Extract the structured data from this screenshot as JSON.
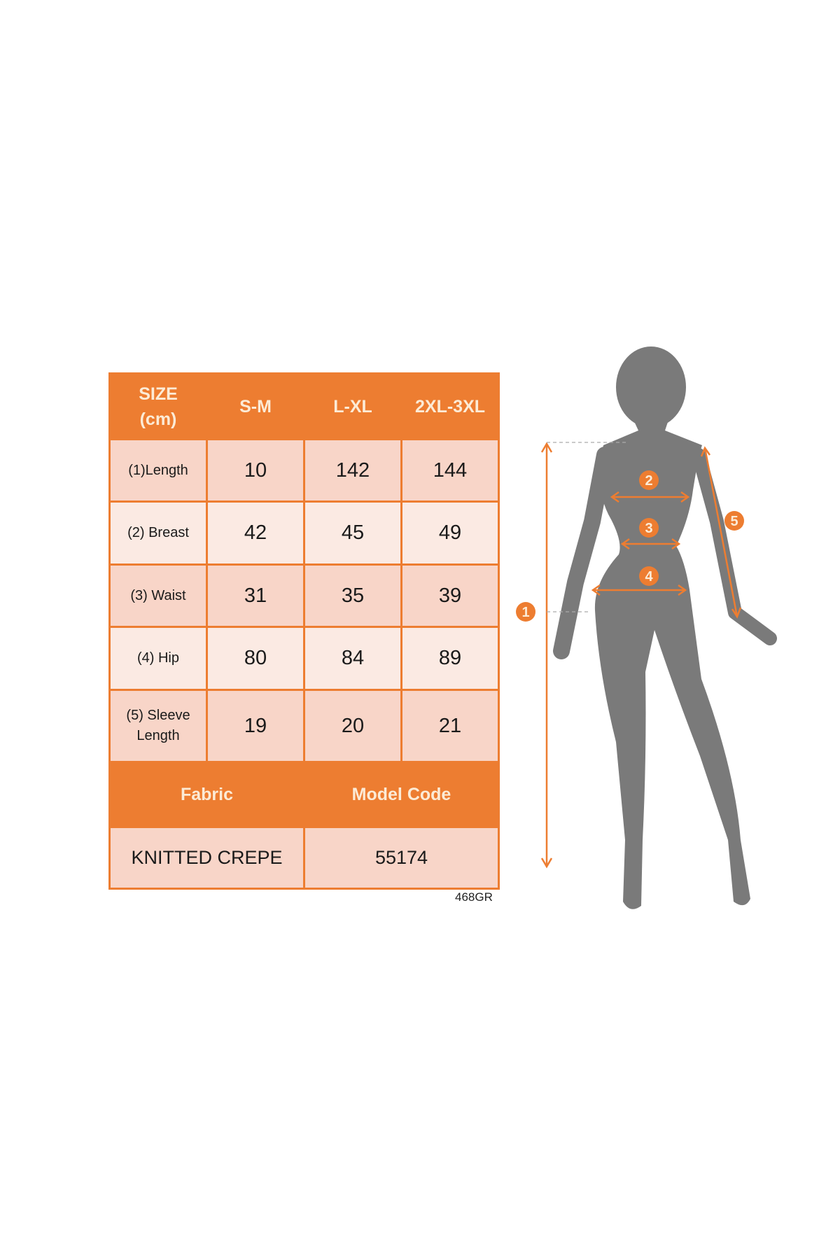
{
  "size_table": {
    "header": [
      "SIZE (cm)",
      "S-M",
      "L-XL",
      "2XL-3XL"
    ],
    "rows": [
      {
        "label": "(1)Length",
        "values": [
          "10",
          "142",
          "144"
        ]
      },
      {
        "label": "(2) Breast",
        "values": [
          "42",
          "45",
          "49"
        ]
      },
      {
        "label": "(3) Waist",
        "values": [
          "31",
          "35",
          "39"
        ]
      },
      {
        "label": "(4) Hip",
        "values": [
          "80",
          "84",
          "89"
        ]
      },
      {
        "label": "(5) Sleeve Length",
        "values": [
          "19",
          "20",
          "21"
        ]
      }
    ],
    "footer_header": [
      "Fabric",
      "Model Code"
    ],
    "footer_values": [
      "KNITTED CREPE",
      "55174"
    ]
  },
  "code_label": "468GR",
  "figure": {
    "markers": [
      "1",
      "2",
      "3",
      "4",
      "5"
    ],
    "silhouette_color": "#7A7A7A",
    "accent_color": "#ED7D31"
  }
}
